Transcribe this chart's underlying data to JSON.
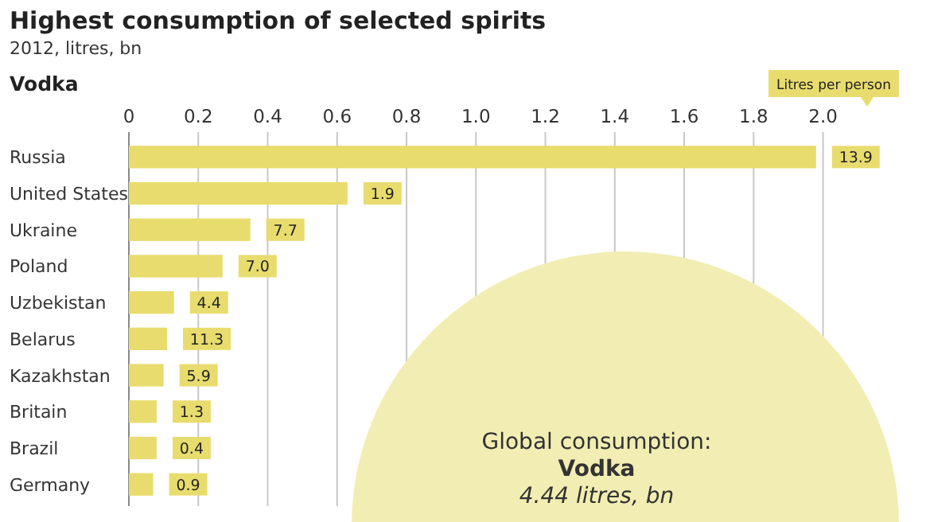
{
  "chart_data": {
    "type": "bar",
    "orientation": "horizontal",
    "title": "Highest consumption of selected spirits",
    "subtitle": "2012, litres, bn",
    "categories": [
      "Russia",
      "United States",
      "Ukraine",
      "Poland",
      "Uzbekistan",
      "Belarus",
      "Kazakhstan",
      "Britain",
      "Brazil",
      "Germany"
    ],
    "values": [
      1.98,
      0.63,
      0.35,
      0.27,
      0.13,
      0.11,
      0.1,
      0.08,
      0.08,
      0.07
    ],
    "color": "#e8dc6e",
    "xlim": [
      0,
      2.15
    ],
    "xticks": [
      0,
      0.2,
      0.4,
      0.6,
      0.8,
      {
        "value": 1,
        "label": "1.0"
      },
      1.2,
      1.4,
      1.6,
      1.8,
      {
        "value": 2,
        "label": "2.0"
      }
    ],
    "grid": "x",
    "annotations": [
      "Vodka",
      "Litres per person",
      {
        "text": "13.9",
        "x": 1.98,
        "y": "Russia"
      },
      {
        "text": "1.9",
        "x": 0.63,
        "y": "United States"
      },
      {
        "text": "7.7",
        "x": 0.35,
        "y": "Ukraine"
      },
      {
        "text": "7.0",
        "x": 0.27,
        "y": "Poland"
      },
      {
        "text": "4.4",
        "x": 0.13,
        "y": "Uzbekistan"
      },
      {
        "text": "11.3",
        "x": 0.11,
        "y": "Belarus"
      },
      {
        "text": "5.9",
        "x": 0.1,
        "y": "Kazakhstan"
      },
      {
        "text": "1.3",
        "x": 0.08,
        "y": "Britain"
      },
      {
        "text": "0.4",
        "x": 0.08,
        "y": "Brazil"
      },
      {
        "text": "0.9",
        "x": 0.07,
        "y": "Germany"
      },
      "Global consumption:",
      "Vodka",
      "4.44 litres, bn"
    ]
  }
}
